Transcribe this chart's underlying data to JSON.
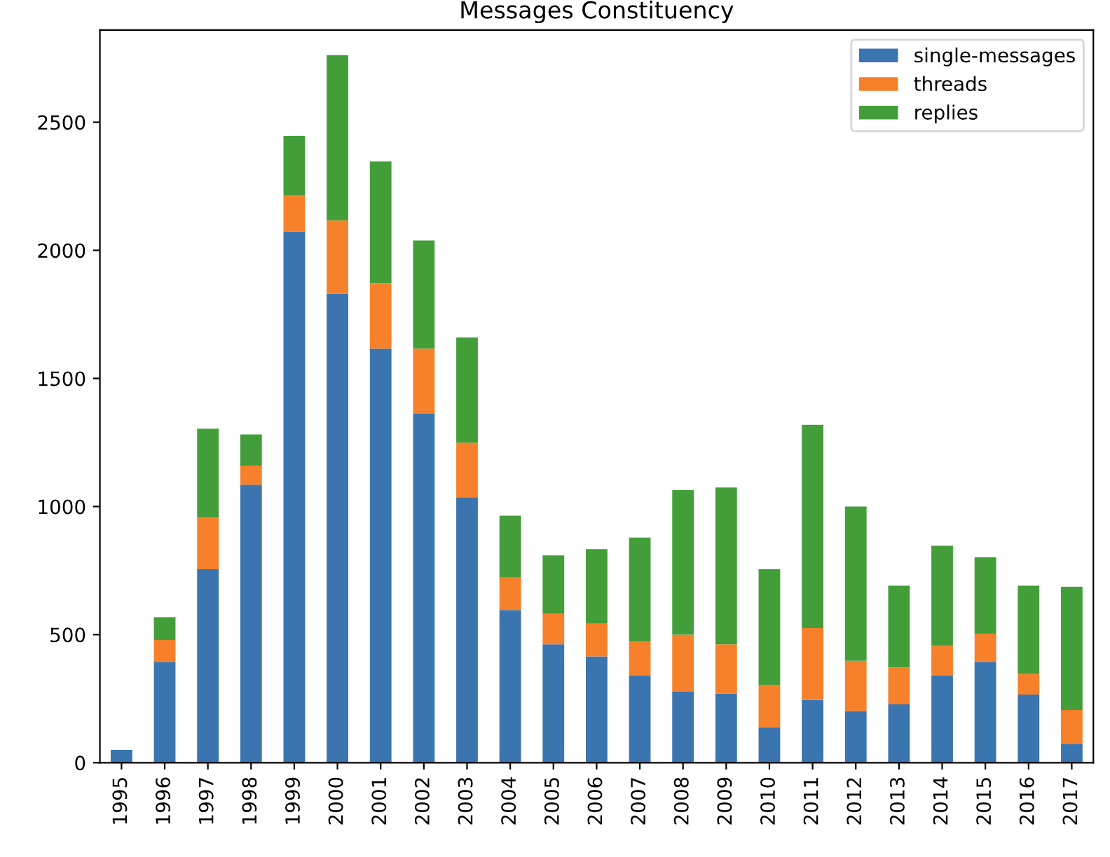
{
  "chart_data": {
    "type": "bar",
    "title": "Messages Constituency",
    "stacked": true,
    "legend": "top right",
    "categories": [
      "1995",
      "1996",
      "1997",
      "1998",
      "1999",
      "2000",
      "2001",
      "2002",
      "2003",
      "2004",
      "2005",
      "2006",
      "2007",
      "2008",
      "2009",
      "2010",
      "2011",
      "2012",
      "2013",
      "2014",
      "2015",
      "2016",
      "2017"
    ],
    "series": [
      {
        "name": "single-messages",
        "color": "#3a75b0",
        "values": [
          50,
          394,
          755,
          1085,
          2074,
          1830,
          1617,
          1362,
          1036,
          596,
          462,
          415,
          340,
          277,
          270,
          138,
          245,
          202,
          228,
          340,
          394,
          266,
          74
        ]
      },
      {
        "name": "threads",
        "color": "#f7812a",
        "values": [
          0,
          85,
          202,
          75,
          139,
          287,
          255,
          255,
          213,
          127,
          119,
          128,
          134,
          223,
          192,
          166,
          281,
          196,
          144,
          117,
          110,
          81,
          132
        ]
      },
      {
        "name": "replies",
        "color": "#439e3a",
        "values": [
          0,
          89,
          347,
          121,
          234,
          645,
          475,
          421,
          411,
          241,
          228,
          291,
          405,
          564,
          612,
          451,
          793,
          602,
          319,
          390,
          298,
          344,
          481
        ]
      }
    ],
    "ylim": [
      0,
      2860
    ],
    "yticks": [
      0,
      500,
      1000,
      1500,
      2000,
      2500
    ],
    "grid": false
  }
}
